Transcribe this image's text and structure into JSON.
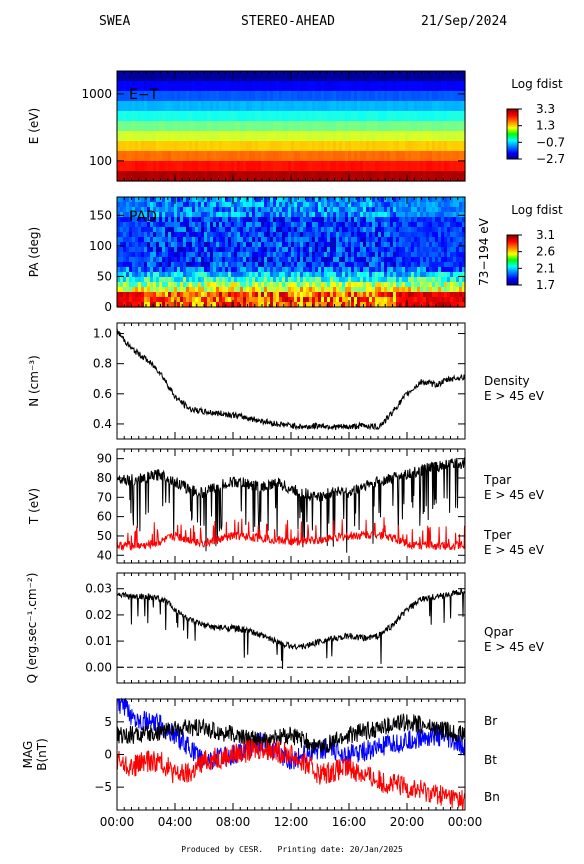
{
  "header": {
    "instrument": "SWEA",
    "spacecraft": "STEREO-AHEAD",
    "date": "21/Sep/2024"
  },
  "footer": {
    "produced_by": "Produced by CESR.",
    "printing_date": "Printing date: 20/Jan/2025"
  },
  "colors": {
    "series_black": "#000000",
    "series_red": "#ff0000",
    "series_blue": "#0000ff",
    "text_red": "#ff0000",
    "text_blue": "#0000ff"
  },
  "time_axis": {
    "ticks": [
      "00:00",
      "04:00",
      "08:00",
      "12:00",
      "16:00",
      "20:00",
      "00:00"
    ],
    "hours": [
      0,
      4,
      8,
      12,
      16,
      20,
      24
    ]
  },
  "chart_data": [
    {
      "type": "heatmap",
      "name": "energy-time",
      "label": "E−T",
      "ylabel": "E (eV)",
      "yscale": "log",
      "ylim": [
        50,
        2200
      ],
      "yticks": [
        {
          "v": 100,
          "label": "100"
        },
        {
          "v": 1000,
          "label": "1000"
        }
      ],
      "colorbar": {
        "title": "Log fdist",
        "range": [
          -2.7,
          3.3
        ],
        "ticks": [
          "3.3",
          "1.3",
          "−0.7",
          "−2.7"
        ]
      }
    },
    {
      "type": "heatmap",
      "name": "pitch-angle",
      "label": "PAD",
      "ylabel": "PA (deg)",
      "right_label": "73−194 eV",
      "ylim": [
        0,
        180
      ],
      "yticks": [
        {
          "v": 0,
          "label": "0"
        },
        {
          "v": 50,
          "label": "50"
        },
        {
          "v": 100,
          "label": "100"
        },
        {
          "v": 150,
          "label": "150"
        }
      ],
      "colorbar": {
        "title": "Log fdist",
        "range": [
          1.7,
          3.1
        ],
        "ticks": [
          "3.1",
          "2.6",
          "2.1",
          "1.7"
        ]
      }
    },
    {
      "type": "line",
      "name": "density",
      "ylabel": "N (cm⁻³)",
      "ylim": [
        0.3,
        1.07
      ],
      "yticks": [
        {
          "v": 0.4,
          "label": "0.4"
        },
        {
          "v": 0.6,
          "label": "0.6"
        },
        {
          "v": 0.8,
          "label": "0.8"
        },
        {
          "v": 1.0,
          "label": "1.0"
        }
      ],
      "legend": [
        {
          "text": "Density",
          "color": "#000000"
        },
        {
          "text": "E > 45 eV",
          "color": "#000000"
        }
      ],
      "series": [
        {
          "color": "#000000",
          "noise": 0.02,
          "spikes": 0,
          "x": [
            0,
            0.3,
            1,
            2,
            3,
            4,
            5,
            6,
            7,
            8,
            9,
            10,
            11,
            12,
            13,
            14,
            15,
            16,
            17,
            18,
            18.5,
            19,
            20,
            21,
            22,
            23,
            24
          ],
          "y": [
            1.02,
            0.98,
            0.9,
            0.83,
            0.74,
            0.58,
            0.5,
            0.48,
            0.47,
            0.46,
            0.44,
            0.42,
            0.4,
            0.39,
            0.38,
            0.39,
            0.38,
            0.38,
            0.39,
            0.38,
            0.42,
            0.48,
            0.6,
            0.68,
            0.66,
            0.7,
            0.71
          ]
        }
      ]
    },
    {
      "type": "line",
      "name": "temperature",
      "ylabel": "T (eV)",
      "ylim": [
        36,
        95
      ],
      "yticks": [
        {
          "v": 40,
          "label": "40"
        },
        {
          "v": 50,
          "label": "50"
        },
        {
          "v": 60,
          "label": "60"
        },
        {
          "v": 70,
          "label": "70"
        },
        {
          "v": 80,
          "label": "80"
        },
        {
          "v": 90,
          "label": "90"
        }
      ],
      "legend": [
        {
          "text": "Tpar",
          "color": "#000000"
        },
        {
          "text": "E > 45 eV",
          "color": "#000000"
        },
        {
          "text": "Tper",
          "color": "#ff0000"
        },
        {
          "text": "E > 45 eV",
          "color": "#ff0000"
        }
      ],
      "series": [
        {
          "color": "#000000",
          "noise": 3,
          "spikes": 90,
          "spike_depth": 30,
          "x": [
            0,
            1,
            2,
            3,
            4,
            5,
            6,
            7,
            8,
            9,
            10,
            11,
            12,
            13,
            14,
            15,
            16,
            17,
            18,
            19,
            20,
            21,
            22,
            23,
            24
          ],
          "y": [
            80,
            79,
            80,
            82,
            78,
            74,
            72,
            76,
            78,
            77,
            75,
            78,
            74,
            72,
            70,
            74,
            72,
            76,
            78,
            80,
            82,
            84,
            86,
            87,
            88
          ]
        },
        {
          "color": "#ff0000",
          "noise": 2.2,
          "spikes": 70,
          "spike_depth": -10,
          "x": [
            0,
            2,
            3,
            4,
            5,
            6,
            7,
            8,
            10,
            12,
            14,
            16,
            18,
            19,
            20,
            21,
            22,
            23,
            24
          ],
          "y": [
            45,
            45,
            47,
            50,
            48,
            46,
            48,
            50,
            49,
            47,
            48,
            50,
            51,
            49,
            46,
            45,
            45,
            45,
            45
          ]
        }
      ]
    },
    {
      "type": "line",
      "name": "heat-flux",
      "ylabel": "Q (erg.sec⁻¹.cm⁻²)",
      "ylim": [
        -0.006,
        0.036
      ],
      "yticks": [
        {
          "v": 0.0,
          "label": "0.00"
        },
        {
          "v": 0.01,
          "label": "0.01"
        },
        {
          "v": 0.02,
          "label": "0.02"
        },
        {
          "v": 0.03,
          "label": "0.03"
        }
      ],
      "zero_line": 0,
      "legend": [
        {
          "text": "Qpar",
          "color": "#000000"
        },
        {
          "text": "E > 45 eV",
          "color": "#000000"
        }
      ],
      "series": [
        {
          "color": "#000000",
          "noise": 0.0012,
          "spikes": 25,
          "spike_depth": 0.012,
          "x": [
            0,
            1,
            2,
            3,
            3.5,
            4,
            5,
            6,
            7,
            8,
            9,
            10,
            11,
            12,
            13,
            14,
            15,
            16,
            17,
            18,
            19,
            20,
            21,
            22,
            23,
            24
          ],
          "y": [
            0.028,
            0.027,
            0.027,
            0.026,
            0.025,
            0.022,
            0.018,
            0.016,
            0.015,
            0.015,
            0.014,
            0.012,
            0.01,
            0.008,
            0.008,
            0.01,
            0.011,
            0.012,
            0.011,
            0.012,
            0.016,
            0.022,
            0.026,
            0.027,
            0.028,
            0.029
          ]
        }
      ]
    },
    {
      "type": "line",
      "name": "magnetic-field",
      "ylabel": "MAG B(nT)",
      "ylim": [
        -8.5,
        8.5
      ],
      "yticks": [
        {
          "v": -5,
          "label": "−5"
        },
        {
          "v": 0,
          "label": "0"
        },
        {
          "v": 5,
          "label": "5"
        }
      ],
      "legend": [
        {
          "text": "Br",
          "color": "#000000"
        },
        {
          "text": "Bt",
          "color": "#ff0000"
        },
        {
          "text": "Bn",
          "color": "#0000ff"
        }
      ],
      "series": [
        {
          "color": "#0000ff",
          "noise": 1.6,
          "spikes": 0,
          "x": [
            0,
            0.5,
            1,
            2,
            3,
            4,
            5,
            6,
            8,
            10,
            12,
            14,
            16,
            18,
            20,
            22,
            24
          ],
          "y": [
            7.8,
            7.2,
            6,
            5,
            4.5,
            3,
            1,
            -1,
            0,
            2,
            -1,
            1,
            0,
            1,
            2,
            3,
            1
          ]
        },
        {
          "color": "#000000",
          "noise": 1.4,
          "spikes": 0,
          "x": [
            0,
            2,
            4,
            6,
            8,
            10,
            12,
            14,
            16,
            18,
            20,
            22,
            24
          ],
          "y": [
            3,
            3,
            4,
            4,
            3,
            2,
            3,
            1,
            3,
            4,
            5,
            4,
            3
          ]
        },
        {
          "color": "#ff0000",
          "noise": 1.7,
          "spikes": 0,
          "x": [
            0,
            1,
            2,
            3,
            4,
            5,
            6,
            8,
            10,
            12,
            14,
            16,
            18,
            20,
            22,
            24
          ],
          "y": [
            -1,
            -2,
            -1,
            -1,
            -3,
            -3,
            -1,
            0,
            1,
            0,
            -3,
            -2,
            -4,
            -5,
            -6,
            -7
          ]
        }
      ]
    }
  ]
}
